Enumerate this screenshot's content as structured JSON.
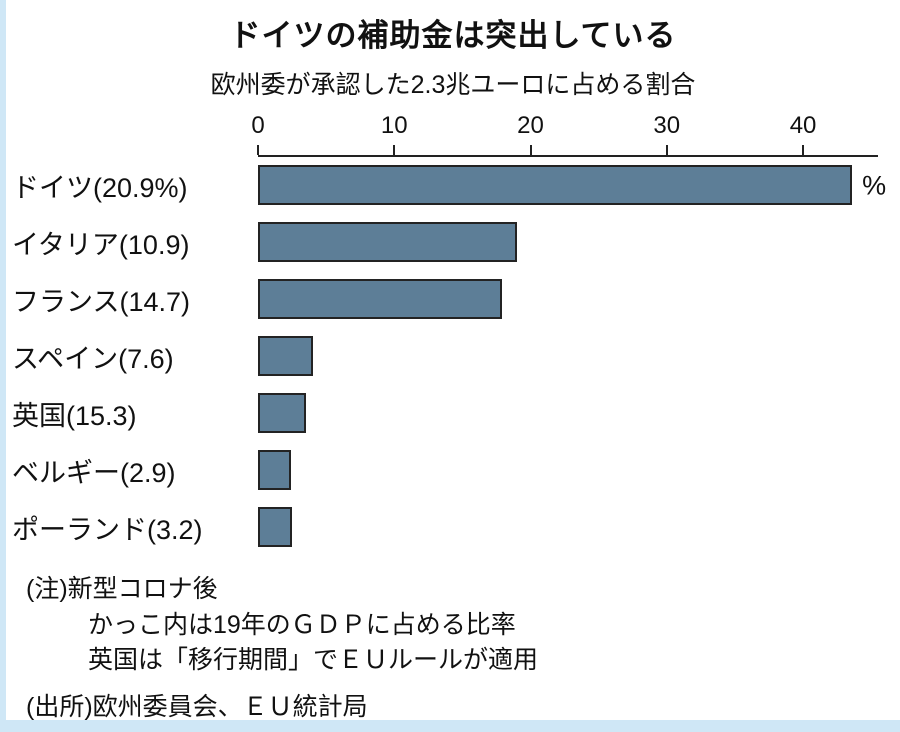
{
  "page": {
    "title": "ドイツの補助金は突出している",
    "subtitle": "欧州委が承認した2.3兆ユーロに占める割合",
    "unit_label": "%",
    "notes": [
      "(注)新型コロナ後",
      "かっこ内は19年のＧＤＰに占める比率",
      "英国は「移行期間」でＥＵルールが適用"
    ],
    "source": "(出所)欧州委員会、ＥＵ統計局"
  },
  "chart_data": {
    "type": "bar",
    "orientation": "horizontal",
    "title": "ドイツの補助金は突出している",
    "subtitle": "欧州委が承認した2.3兆ユーロに占める割合",
    "xlabel": "%",
    "categories": [
      "ドイツ(20.9%)",
      "イタリア(10.9)",
      "フランス(14.7)",
      "スペイン(7.6)",
      "英国(15.3)",
      "ベルギー(2.9)",
      "ポーランド(3.2)"
    ],
    "values": [
      43.6,
      19.0,
      17.9,
      4.0,
      3.5,
      2.4,
      2.5
    ],
    "xlim": [
      0,
      45.5
    ],
    "xticks": [
      0,
      10,
      20,
      30,
      40
    ],
    "grid": false,
    "legend": false,
    "bar_color": "#5d7e97",
    "bar_border_color": "#232323",
    "axis_color": "#222222"
  }
}
